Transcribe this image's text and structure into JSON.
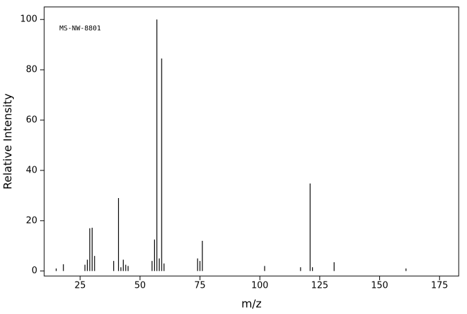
{
  "chart_data": {
    "type": "bar",
    "annotation": "MS-NW-8801",
    "x_label": "m/z",
    "y_label": "Relative Intensity",
    "x": [
      15,
      18,
      27,
      28,
      29,
      30,
      31,
      39,
      41,
      42,
      43,
      44,
      45,
      55,
      56,
      57,
      58,
      59,
      60,
      74,
      75,
      76,
      102,
      117,
      121,
      122,
      131,
      161
    ],
    "values": [
      1,
      2.7,
      2.5,
      4.5,
      17,
      17.2,
      6,
      4,
      29,
      1.5,
      4.5,
      2.5,
      2,
      4,
      12.5,
      100,
      5,
      84.5,
      3,
      5,
      4,
      12,
      2,
      1.5,
      34.8,
      1.5,
      3.5,
      1
    ],
    "color": "#000000",
    "xlim": [
      10,
      183
    ],
    "xticks": [
      25,
      50,
      75,
      100,
      125,
      150,
      175
    ],
    "ylim": [
      -2,
      105
    ],
    "yticks": [
      0,
      20,
      40,
      60,
      80,
      100
    ]
  }
}
